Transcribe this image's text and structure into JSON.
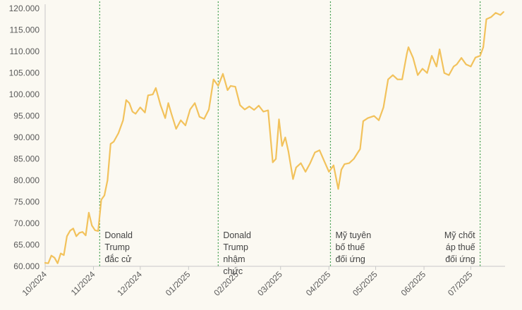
{
  "chart_data": {
    "type": "line",
    "title": "",
    "xlabel": "",
    "ylabel": "",
    "ylim": [
      60000,
      121000
    ],
    "y_ticks": [
      60000,
      65000,
      70000,
      75000,
      80000,
      85000,
      90000,
      95000,
      100000,
      105000,
      110000,
      115000,
      120000
    ],
    "y_tick_labels": [
      "60.000",
      "65.000",
      "70.000",
      "75.000",
      "80.000",
      "85.000",
      "90.000",
      "95.000",
      "100.000",
      "105.000",
      "110.000",
      "115.000",
      "120.000"
    ],
    "x_range": [
      "2024-10-01",
      "2025-07-23"
    ],
    "x_ticks": [
      "2024-10-01",
      "2024-11-01",
      "2024-12-01",
      "2025-01-01",
      "2025-02-01",
      "2025-03-01",
      "2025-04-01",
      "2025-05-01",
      "2025-06-01",
      "2025-07-01"
    ],
    "x_tick_labels": [
      "10/2024",
      "11/2024",
      "12/2024",
      "01/2025",
      "02/2025",
      "03/2025",
      "04/2025",
      "05/2025",
      "06/2025",
      "07/2025"
    ],
    "grid": false,
    "colors": {
      "line": "#f2c25c",
      "event_line": "#3f9e4d",
      "background": "#fbf9f2",
      "axis": "#c8c8c8"
    },
    "series": [
      {
        "x": [
          "2024-10-01",
          "2024-10-03",
          "2024-10-05",
          "2024-10-07",
          "2024-10-09",
          "2024-10-11",
          "2024-10-13",
          "2024-10-15",
          "2024-10-17",
          "2024-10-19",
          "2024-10-21",
          "2024-10-23",
          "2024-10-25",
          "2024-10-27",
          "2024-10-29",
          "2024-10-31",
          "2024-11-02",
          "2024-11-04",
          "2024-11-06",
          "2024-11-08",
          "2024-11-10",
          "2024-11-12",
          "2024-11-14",
          "2024-11-17",
          "2024-11-20",
          "2024-11-22",
          "2024-11-24",
          "2024-11-26",
          "2024-11-28",
          "2024-12-01",
          "2024-12-04",
          "2024-12-06",
          "2024-12-09",
          "2024-12-11",
          "2024-12-14",
          "2024-12-17",
          "2024-12-19",
          "2024-12-21",
          "2024-12-24",
          "2024-12-27",
          "2024-12-30",
          "2025-01-02",
          "2025-01-05",
          "2025-01-08",
          "2025-01-11",
          "2025-01-14",
          "2025-01-17",
          "2025-01-20",
          "2025-01-23",
          "2025-01-26",
          "2025-01-28",
          "2025-01-31",
          "2025-02-03",
          "2025-02-06",
          "2025-02-09",
          "2025-02-12",
          "2025-02-15",
          "2025-02-18",
          "2025-02-21",
          "2025-02-24",
          "2025-02-26",
          "2025-02-28",
          "2025-03-02",
          "2025-03-04",
          "2025-03-06",
          "2025-03-09",
          "2025-03-11",
          "2025-03-14",
          "2025-03-17",
          "2025-03-20",
          "2025-03-23",
          "2025-03-26",
          "2025-03-29",
          "2025-04-01",
          "2025-04-04",
          "2025-04-07",
          "2025-04-09",
          "2025-04-11",
          "2025-04-14",
          "2025-04-17",
          "2025-04-21",
          "2025-04-23",
          "2025-04-26",
          "2025-04-30",
          "2025-05-03",
          "2025-05-06",
          "2025-05-09",
          "2025-05-12",
          "2025-05-15",
          "2025-05-18",
          "2025-05-21",
          "2025-05-22",
          "2025-05-25",
          "2025-05-28",
          "2025-05-31",
          "2025-06-03",
          "2025-06-06",
          "2025-06-09",
          "2025-06-11",
          "2025-06-14",
          "2025-06-17",
          "2025-06-20",
          "2025-06-22",
          "2025-06-25",
          "2025-06-28",
          "2025-07-01",
          "2025-07-04",
          "2025-07-07",
          "2025-07-09",
          "2025-07-11",
          "2025-07-14",
          "2025-07-17",
          "2025-07-20",
          "2025-07-22"
        ],
        "y": [
          60800,
          60700,
          62500,
          62000,
          60700,
          63000,
          62600,
          67000,
          68300,
          68800,
          67000,
          67800,
          68000,
          67200,
          72500,
          69500,
          68400,
          68200,
          75500,
          76500,
          80000,
          88500,
          89000,
          91000,
          94000,
          98700,
          98000,
          96000,
          95500,
          97000,
          95800,
          99800,
          100000,
          101500,
          97500,
          94500,
          98000,
          95500,
          92000,
          94000,
          92800,
          96500,
          98000,
          94800,
          94300,
          96500,
          103500,
          102000,
          104800,
          101000,
          102000,
          101800,
          97500,
          96500,
          97200,
          96400,
          97400,
          96000,
          96300,
          84200,
          85000,
          94200,
          88000,
          90000,
          86800,
          80300,
          83000,
          84000,
          82000,
          84000,
          86500,
          87000,
          84500,
          82000,
          83500,
          78000,
          82500,
          83800,
          84000,
          85000,
          87300,
          93800,
          94500,
          95000,
          94000,
          97000,
          103500,
          104500,
          103500,
          103500,
          109500,
          111000,
          108500,
          104500,
          106000,
          105000,
          109000,
          106500,
          110500,
          105000,
          104500,
          106500,
          107000,
          108500,
          107000,
          106500,
          108600,
          109000,
          111000,
          117500,
          118000,
          119000,
          118500,
          119200
        ]
      }
    ],
    "annotations": [
      {
        "date": "2024-11-05",
        "lines": [
          "Donald",
          "Trump",
          "đắc cử"
        ],
        "text_align": "start"
      },
      {
        "date": "2025-01-20",
        "lines": [
          "Donald",
          "Trump",
          "nhậm",
          "chức"
        ],
        "text_align": "start"
      },
      {
        "date": "2025-04-02",
        "lines": [
          "Mỹ tuyên",
          "bố thuế",
          "đối ứng"
        ],
        "text_align": "start"
      },
      {
        "date": "2025-07-07",
        "lines": [
          "Mỹ chốt",
          "áp thuế",
          "đối ứng"
        ],
        "text_align": "end"
      }
    ]
  }
}
